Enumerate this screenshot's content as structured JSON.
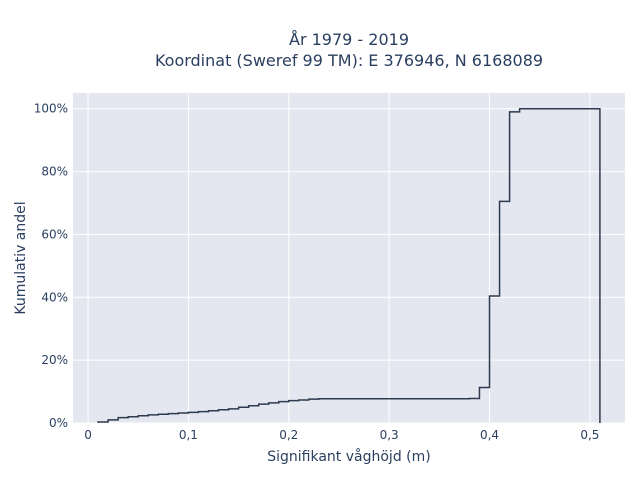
{
  "chart_data": {
    "type": "line",
    "step": true,
    "title_lines": [
      "År 1979 - 2019",
      "Koordinat (Sweref 99 TM): E 376946, N 6168089"
    ],
    "xlabel": "Signifikant våghöjd (m)",
    "ylabel": "Kumulativ andel",
    "xlim": [
      -0.015,
      0.535
    ],
    "ylim": [
      0,
      1.05
    ],
    "x_ticks": [
      0,
      0.1,
      0.2,
      0.3,
      0.4,
      0.5
    ],
    "x_tick_labels": [
      "0",
      "0,1",
      "0,2",
      "0,3",
      "0,4",
      "0,5"
    ],
    "y_ticks": [
      0,
      0.2,
      0.4,
      0.6,
      0.8,
      1.0
    ],
    "y_tick_labels": [
      "0%",
      "20%",
      "40%",
      "60%",
      "80%",
      "100%"
    ],
    "grid": true,
    "background_color": "#e5e7f0",
    "gridline_color": "#ffffff",
    "line_color": "#2e3a4e",
    "series": [
      {
        "x": [
          0.01,
          0.02,
          0.03,
          0.04,
          0.05,
          0.06,
          0.07,
          0.08,
          0.09,
          0.1,
          0.11,
          0.12,
          0.13,
          0.14,
          0.15,
          0.16,
          0.17,
          0.18,
          0.19,
          0.2,
          0.21,
          0.22,
          0.23,
          0.25,
          0.3,
          0.35,
          0.38,
          0.39,
          0.4,
          0.41,
          0.42,
          0.43,
          0.45,
          0.48,
          0.51
        ],
        "y": [
          0.003,
          0.01,
          0.017,
          0.02,
          0.023,
          0.026,
          0.028,
          0.03,
          0.032,
          0.034,
          0.036,
          0.039,
          0.042,
          0.045,
          0.05,
          0.055,
          0.06,
          0.064,
          0.068,
          0.071,
          0.073,
          0.076,
          0.077,
          0.077,
          0.077,
          0.077,
          0.078,
          0.113,
          0.404,
          0.705,
          0.99,
          1.0,
          1.0,
          1.0,
          0
        ]
      }
    ]
  }
}
